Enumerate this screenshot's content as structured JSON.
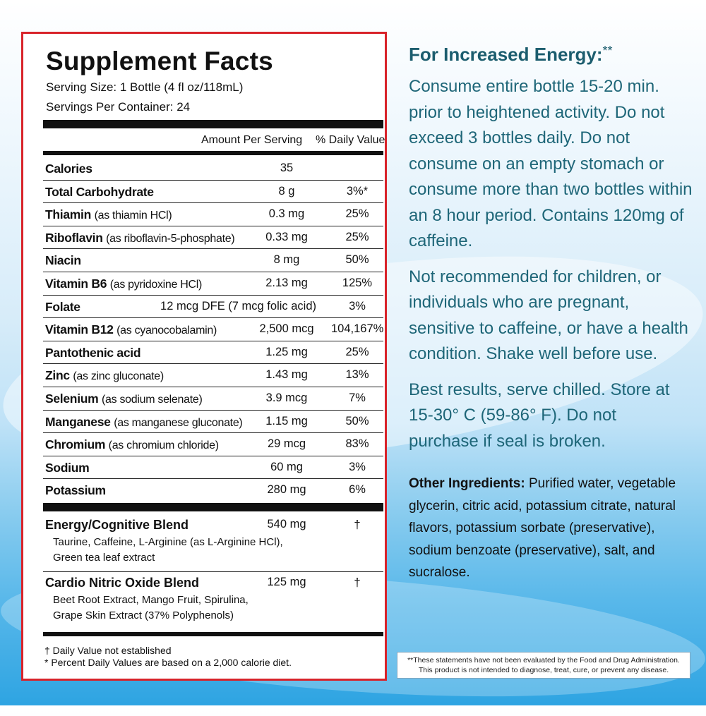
{
  "label": {
    "title": "Supplement Facts",
    "serving_size": "Serving Size: 1 Bottle (4 fl oz/118mL)",
    "servings_per_container": "Servings Per Container: 24",
    "header_amount": "Amount Per Serving",
    "header_dv": "% Daily Value",
    "rows": [
      {
        "name": "Calories",
        "source": "",
        "amount": "35",
        "dv": ""
      },
      {
        "name": "Total Carbohydrate",
        "source": "",
        "amount": "8 g",
        "dv": "3%*"
      },
      {
        "name": "Thiamin",
        "source": "(as thiamin HCl)",
        "amount": "0.3 mg",
        "dv": "25%"
      },
      {
        "name": "Riboflavin",
        "source": "(as riboflavin-5-phosphate)",
        "amount": "0.33 mg",
        "dv": "25%"
      },
      {
        "name": "Niacin",
        "source": "",
        "amount": "8 mg",
        "dv": "50%"
      },
      {
        "name": "Vitamin B6",
        "source": "(as pyridoxine HCl)",
        "amount": "2.13 mg",
        "dv": "125%"
      },
      {
        "name": "Folate",
        "source": "",
        "amount": "12 mcg DFE (7 mcg folic acid)",
        "dv": "3%"
      },
      {
        "name": "Vitamin B12",
        "source": "(as cyanocobalamin)",
        "amount": "2,500 mcg",
        "dv": "104,167%"
      },
      {
        "name": "Pantothenic acid",
        "source": "",
        "amount": "1.25 mg",
        "dv": "25%"
      },
      {
        "name": "Zinc",
        "source": "(as zinc gluconate)",
        "amount": "1.43 mg",
        "dv": "13%"
      },
      {
        "name": "Selenium",
        "source": "(as sodium selenate)",
        "amount": "3.9 mcg",
        "dv": "7%"
      },
      {
        "name": "Manganese",
        "source": "(as manganese gluconate)",
        "amount": "1.15 mg",
        "dv": "50%"
      },
      {
        "name": "Chromium",
        "source": "(as chromium chloride)",
        "amount": "29 mcg",
        "dv": "83%"
      },
      {
        "name": "Sodium",
        "source": "",
        "amount": "60 mg",
        "dv": "3%"
      },
      {
        "name": "Potassium",
        "source": "",
        "amount": "280 mg",
        "dv": "6%"
      }
    ],
    "blends": [
      {
        "name": "Energy/Cognitive Blend",
        "amount": "540 mg",
        "dv": "†",
        "ingredients": "Taurine, Caffeine, L-Arginine (as L-Arginine HCl), Green tea leaf extract"
      },
      {
        "name": "Cardio Nitric Oxide Blend",
        "amount": "125 mg",
        "dv": "†",
        "ingredients": "Beet Root Extract, Mango Fruit, Spirulina, Grape Skin Extract (37% Polyphenols)"
      }
    ],
    "footnote_1": "† Daily Value not established",
    "footnote_2": "* Percent Daily Values are based on a 2,000 calorie diet.",
    "border_color": "#d8232a"
  },
  "directions": {
    "heading": "For Increased Energy:",
    "heading_mark": "**",
    "p1": "Consume entire bottle 15-20 min. prior to heightened activity. Do not exceed 3 bottles daily. Do not consume on an empty stomach or consume more than two bottles within an 8 hour period. Contains 120mg of caffeine.",
    "p2": "Not recommended for children, or individuals who are pregnant, sensitive to caffeine, or have a health condition. Shake well before use.",
    "p3": "Best results, serve chilled. Store at 15-30° C (59-86° F). Do not purchase if seal is broken.",
    "other_label": "Other Ingredients:",
    "other_text": " Purified water, vegetable glycerin, citric acid, potassium citrate, natural flavors, potassium sorbate (preservative), sodium benzoate (preservative), salt, and sucralose.",
    "text_color": "#1e6678"
  },
  "disclaimer": {
    "line1": "**These statements have not been evaluated by the Food and Drug Administration.",
    "line2": "This product is not intended to diagnose, treat, cure, or prevent any disease."
  }
}
